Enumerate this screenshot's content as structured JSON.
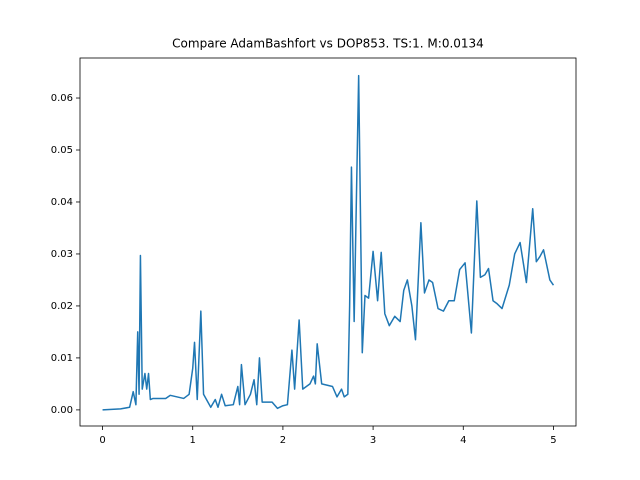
{
  "chart_data": {
    "type": "line",
    "title": "Compare AdamBashfort vs DOP853. TS:1. M:0.0134",
    "x": [
      0,
      0.2,
      0.3,
      0.34,
      0.37,
      0.39,
      0.405,
      0.42,
      0.44,
      0.47,
      0.49,
      0.51,
      0.53,
      0.56,
      0.7,
      0.75,
      0.9,
      0.96,
      1.0,
      1.02,
      1.05,
      1.09,
      1.12,
      1.2,
      1.25,
      1.28,
      1.32,
      1.36,
      1.45,
      1.5,
      1.52,
      1.54,
      1.58,
      1.64,
      1.68,
      1.71,
      1.74,
      1.77,
      1.88,
      1.94,
      2.0,
      2.05,
      2.1,
      2.13,
      2.18,
      2.22,
      2.3,
      2.34,
      2.36,
      2.38,
      2.43,
      2.55,
      2.6,
      2.65,
      2.68,
      2.72,
      2.74,
      2.76,
      2.79,
      2.84,
      2.88,
      2.91,
      2.95,
      3.0,
      3.05,
      3.09,
      3.13,
      3.18,
      3.24,
      3.3,
      3.34,
      3.38,
      3.43,
      3.47,
      3.53,
      3.57,
      3.62,
      3.66,
      3.72,
      3.78,
      3.84,
      3.9,
      3.96,
      4.02,
      4.09,
      4.15,
      4.19,
      4.24,
      4.28,
      4.33,
      4.37,
      4.43,
      4.51,
      4.57,
      4.63,
      4.7,
      4.77,
      4.81,
      4.85,
      4.89,
      4.96,
      5.0
    ],
    "series": [
      {
        "color": "#1f77b4",
        "values": [
          0.0,
          0.0002,
          0.0005,
          0.0035,
          0.001,
          0.015,
          0.003,
          0.0297,
          0.004,
          0.007,
          0.004,
          0.007,
          0.002,
          0.0022,
          0.0022,
          0.0028,
          0.0022,
          0.003,
          0.008,
          0.013,
          0.002,
          0.019,
          0.003,
          0.0005,
          0.002,
          0.0005,
          0.003,
          0.0008,
          0.001,
          0.0045,
          0.001,
          0.0087,
          0.001,
          0.003,
          0.0058,
          0.001,
          0.01,
          0.0015,
          0.0015,
          0.0003,
          0.0008,
          0.001,
          0.0115,
          0.004,
          0.0173,
          0.004,
          0.005,
          0.0065,
          0.005,
          0.0127,
          0.005,
          0.0045,
          0.0025,
          0.004,
          0.0025,
          0.003,
          0.02,
          0.0467,
          0.017,
          0.0643,
          0.011,
          0.022,
          0.0215,
          0.0305,
          0.021,
          0.0303,
          0.0185,
          0.0162,
          0.018,
          0.017,
          0.023,
          0.025,
          0.02,
          0.0135,
          0.036,
          0.0225,
          0.025,
          0.0245,
          0.0195,
          0.019,
          0.021,
          0.021,
          0.027,
          0.0283,
          0.0148,
          0.0402,
          0.0255,
          0.026,
          0.0272,
          0.021,
          0.0205,
          0.0195,
          0.024,
          0.03,
          0.0322,
          0.0245,
          0.0387,
          0.0285,
          0.0295,
          0.0308,
          0.025,
          0.024
        ]
      }
    ],
    "xlim": [
      -0.25,
      5.25
    ],
    "ylim": [
      -0.0031,
      0.0677
    ],
    "xticks": [
      0,
      1,
      2,
      3,
      4,
      5
    ],
    "yticks": [
      {
        "value": 0,
        "label": "0.00"
      },
      {
        "value": 0.01,
        "label": "0.01"
      },
      {
        "value": 0.02,
        "label": "0.02"
      },
      {
        "value": 0.03,
        "label": "0.03"
      },
      {
        "value": 0.04,
        "label": "0.04"
      },
      {
        "value": 0.05,
        "label": "0.05"
      },
      {
        "value": 0.06,
        "label": "0.06"
      }
    ],
    "grid": false
  }
}
